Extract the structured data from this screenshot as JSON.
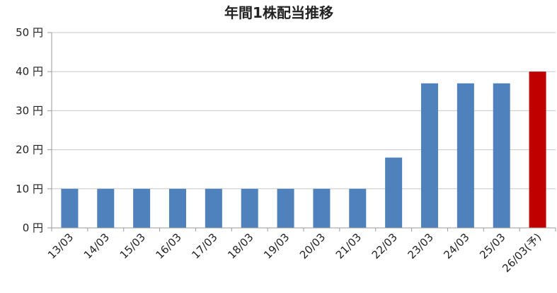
{
  "chart_data": {
    "type": "bar",
    "title": "年間1株配当推移",
    "xlabel": "",
    "ylabel": "",
    "ylim": [
      0,
      50
    ],
    "yticks": [
      0,
      10,
      20,
      30,
      40,
      50
    ],
    "y_unit": "円",
    "grid": true,
    "legend": "none",
    "categories": [
      "13/03",
      "14/03",
      "15/03",
      "16/03",
      "17/03",
      "18/03",
      "19/03",
      "20/03",
      "21/03",
      "22/03",
      "23/03",
      "24/03",
      "25/03",
      "26/03(予)"
    ],
    "values": [
      10,
      10,
      10,
      10,
      10,
      10,
      10,
      10,
      10,
      18,
      37,
      37,
      37,
      40
    ],
    "bar_colors": {
      "actual": "#4f81bd",
      "forecast": "#c00000"
    },
    "forecast_index": 13
  }
}
